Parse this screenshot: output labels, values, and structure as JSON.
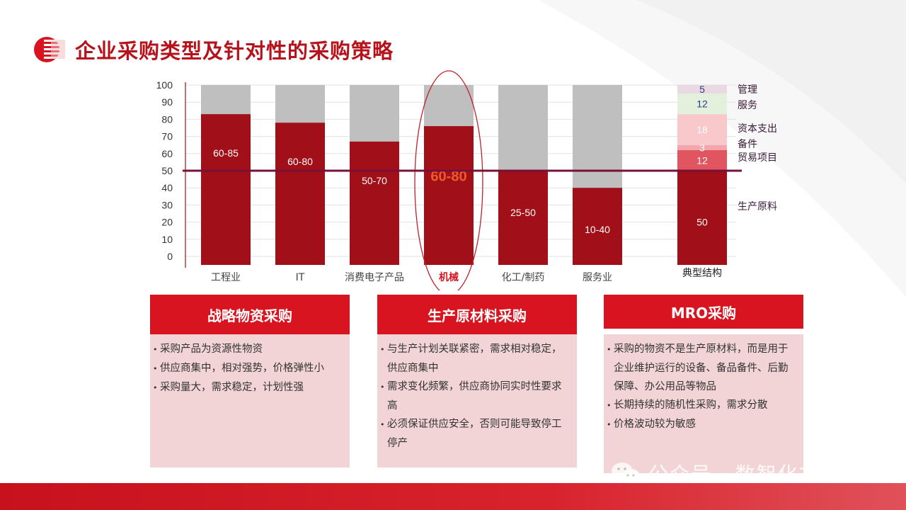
{
  "page": {
    "title": "企业采购类型及针对性的采购策略"
  },
  "chart_data": {
    "type": "bar",
    "yticks": [
      100,
      90,
      80,
      70,
      60,
      50,
      40,
      30,
      20,
      10,
      0
    ],
    "ylim": [
      0,
      100
    ],
    "reference_line": 50,
    "categories": [
      "工程业",
      "IT",
      "消费电子产品",
      "机械",
      "化工/制药",
      "服务业"
    ],
    "highlighted_category": "机械",
    "series": [
      {
        "values": [
          83,
          78,
          67,
          76,
          50,
          40
        ],
        "labels": [
          "60-85",
          "60-80",
          "50-70",
          "60-80",
          "25-50",
          "10-40"
        ]
      }
    ],
    "typical_structure": {
      "category": "典型结构",
      "segments": [
        {
          "name": "生产原料",
          "value": 50,
          "label": "50",
          "color": "#a11018"
        },
        {
          "name": "贸易项目",
          "value": 12,
          "label": "12",
          "color": "#e05560"
        },
        {
          "name": "备件",
          "value": 3,
          "label": "3",
          "color": "#f3a6ab"
        },
        {
          "name": "资本支出",
          "value": 18,
          "label": "18",
          "color": "#f9c8cb"
        },
        {
          "name": "服务",
          "value": 12,
          "label": "12",
          "color": "#e3f1dc"
        },
        {
          "name": "管理",
          "value": 5,
          "label": "5",
          "color": "#ead9e2"
        }
      ]
    },
    "colors": {
      "bar": "#a11018",
      "remainder": "#bfbfbf",
      "reference": "#7a1038",
      "highlight": "#f05a28"
    }
  },
  "boxes": [
    {
      "title": "战略物资采购",
      "items": [
        "采购产品为资源性物资",
        "供应商集中，相对强势，价格弹性小",
        "采购量大，需求稳定，计划性强"
      ]
    },
    {
      "title": "生产原材料采购",
      "items": [
        "与生产计划关联紧密，需求相对稳定，供应商集中",
        "需求变化频繁，供应商协同实时性要求高",
        "必须保证供应安全，否则可能导致停工停产"
      ]
    },
    {
      "title": "MRO采购",
      "items": [
        "采购的物资不是生产原材料，而是用于企业维护运行的设备、备品备件、后勤保障、办公用品等物品",
        "长期持续的随机性采购，需求分散",
        "价格波动较为敏感"
      ]
    }
  ],
  "watermark": {
    "text": "公众号 · 数智化文库",
    "icon": "wechat-icon"
  }
}
